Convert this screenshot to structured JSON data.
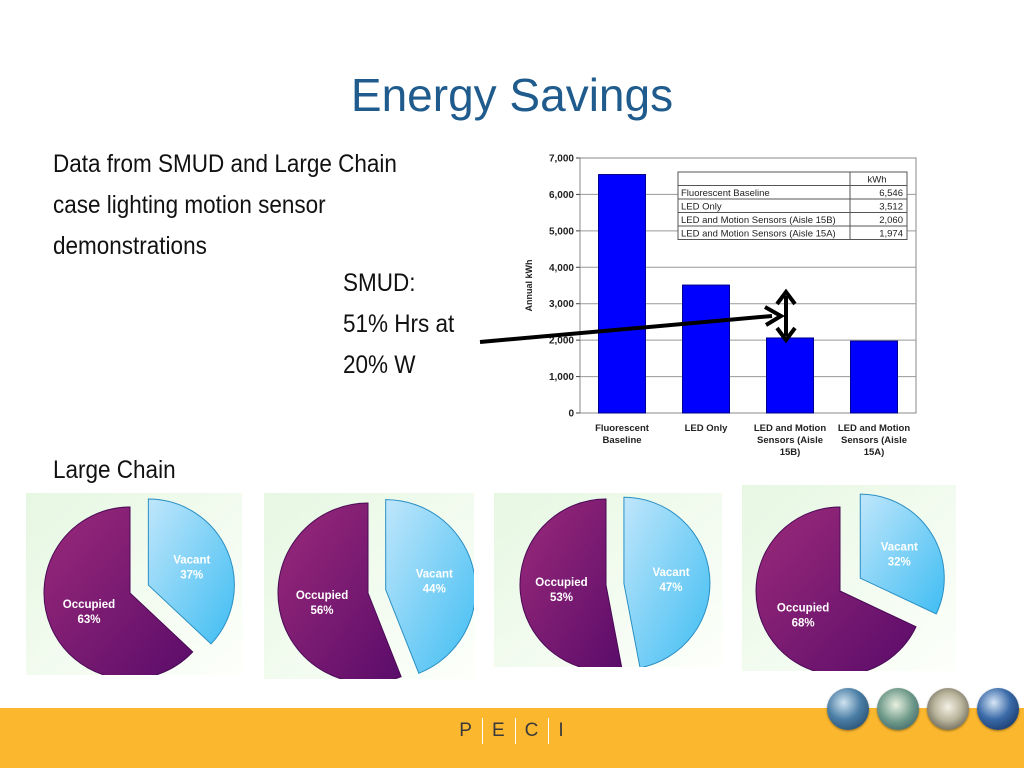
{
  "slide": {
    "title": "Energy Savings",
    "intro_lines": [
      "Data from SMUD and Large Chain",
      "case lighting motion sensor",
      "demonstrations"
    ],
    "smud_lines": [
      "SMUD:",
      "51% Hrs at",
      "20% W"
    ],
    "large_chain_label": "Large Chain"
  },
  "footer": {
    "logo_letters": [
      "P",
      "E",
      "C",
      "I"
    ],
    "accent_color": "#fbb72e"
  },
  "colors": {
    "bar": "#0000ff",
    "vacant": "#3fbdf2",
    "occupied": "#7a1a72",
    "title": "#1f5b8c"
  },
  "chart_data": [
    {
      "type": "bar",
      "categories": [
        [
          "Fluorescent",
          "Baseline"
        ],
        [
          "LED Only"
        ],
        [
          "LED and Motion",
          "Sensors (Aisle",
          "15B)"
        ],
        [
          "LED and Motion",
          "Sensors (Aisle",
          "15A)"
        ]
      ],
      "values": [
        6546,
        3512,
        2060,
        1974
      ],
      "ylabel": "Annual kWh",
      "ylim": [
        0,
        7000
      ],
      "yticks": [
        "0",
        "1,000",
        "2,000",
        "3,000",
        "4,000",
        "5,000",
        "6,000",
        "7,000"
      ],
      "grid": true,
      "table": {
        "header": "kWh",
        "rows": [
          {
            "label": "Fluorescent Baseline",
            "value": "6,546"
          },
          {
            "label": "LED Only",
            "value": "3,512"
          },
          {
            "label": "LED and Motion Sensors (Aisle 15B)",
            "value": "2,060"
          },
          {
            "label": "LED and Motion Sensors (Aisle 15A)",
            "value": "1,974"
          }
        ]
      }
    },
    {
      "type": "pie",
      "slices": [
        {
          "label": "Vacant",
          "percent": "37%",
          "value": 37
        },
        {
          "label": "Occupied",
          "percent": "63%",
          "value": 63
        }
      ]
    },
    {
      "type": "pie",
      "slices": [
        {
          "label": "Vacant",
          "percent": "44%",
          "value": 44
        },
        {
          "label": "Occupied",
          "percent": "56%",
          "value": 56
        }
      ]
    },
    {
      "type": "pie",
      "slices": [
        {
          "label": "Vacant",
          "percent": "47%",
          "value": 47
        },
        {
          "label": "Occupied",
          "percent": "53%",
          "value": 53
        }
      ]
    },
    {
      "type": "pie",
      "slices": [
        {
          "label": "Vacant",
          "percent": "32%",
          "value": 32
        },
        {
          "label": "Occupied",
          "percent": "68%",
          "value": 68
        }
      ]
    }
  ]
}
